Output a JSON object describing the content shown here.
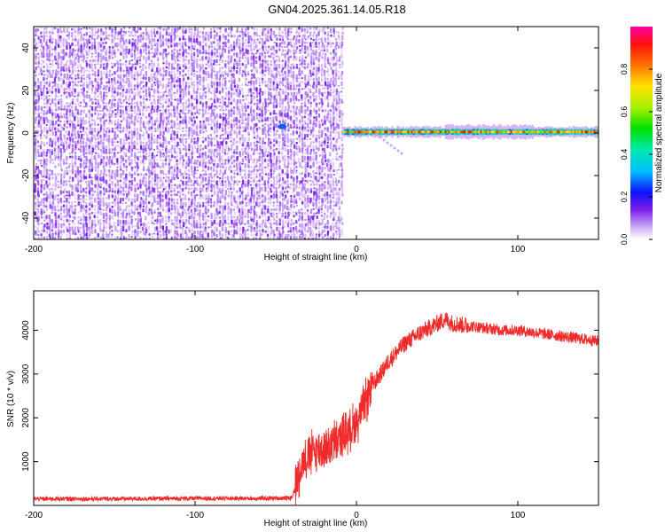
{
  "figure_title": "GN04.2025.361.14.05.R18",
  "colors": {
    "snr_line": "#ef2b2b",
    "background": "#ffffff",
    "axis": "#000000",
    "speckle": "#7a1fe8"
  },
  "chart_data": [
    {
      "type": "heatmap",
      "title": "GN04.2025.361.14.05.R18",
      "xlabel": "Height of straight line (km)",
      "ylabel": "Frequency (Hz)",
      "xlim": [
        -200,
        150
      ],
      "ylim": [
        -50,
        50
      ],
      "xticks": [
        -200,
        -100,
        0,
        100
      ],
      "yticks": [
        -40,
        -20,
        0,
        20,
        40
      ],
      "xtick_labels": [
        "-200",
        "-100",
        "0",
        "100"
      ],
      "ytick_labels": [
        "-40",
        "-20",
        "0",
        "20",
        "40"
      ],
      "colorbar": {
        "label": "Normalized spectral amplitude",
        "range": [
          0,
          1
        ],
        "ticks": [
          0.0,
          0.2,
          0.4,
          0.6,
          0.8
        ],
        "tick_labels": [
          "0.0",
          "0.2",
          "0.4",
          "0.6",
          "0.8"
        ]
      },
      "features": [
        {
          "name": "noise_region",
          "x_range": [
            -200,
            -8
          ],
          "freq_range": [
            -50,
            50
          ],
          "amplitude": 0.15
        },
        {
          "name": "carrier_band",
          "x_range": [
            -8,
            150
          ],
          "freq_center": 0.5,
          "amplitude": 0.9
        },
        {
          "name": "isolated_blob",
          "x": -46,
          "freq": 3,
          "amplitude": 0.4
        }
      ]
    },
    {
      "type": "line",
      "xlabel": "Height of straight line (km)",
      "ylabel": "SNR (10 * v/v)",
      "xlim": [
        -200,
        150
      ],
      "ylim": [
        0,
        4900
      ],
      "xticks": [
        -200,
        -100,
        0,
        100
      ],
      "yticks": [
        1000,
        2000,
        3000,
        4000
      ],
      "xtick_labels": [
        "-200",
        "-100",
        "0",
        "100"
      ],
      "ytick_labels": [
        "1000",
        "2000",
        "3000",
        "4000"
      ],
      "series": [
        {
          "name": "SNR",
          "x": [
            -200,
            -150,
            -100,
            -60,
            -40,
            -38,
            -34,
            -30,
            -25,
            -20,
            -15,
            -10,
            -5,
            0,
            5,
            10,
            15,
            20,
            30,
            40,
            50,
            55,
            60,
            70,
            80,
            90,
            100,
            110,
            120,
            130,
            140,
            150
          ],
          "y": [
            150,
            150,
            160,
            160,
            170,
            400,
            950,
            1150,
            1250,
            1300,
            1400,
            1550,
            1700,
            1900,
            2300,
            2750,
            3000,
            3300,
            3700,
            3950,
            4150,
            4250,
            4150,
            4100,
            4050,
            4000,
            4000,
            3950,
            3900,
            3850,
            3800,
            3750
          ]
        }
      ]
    }
  ]
}
